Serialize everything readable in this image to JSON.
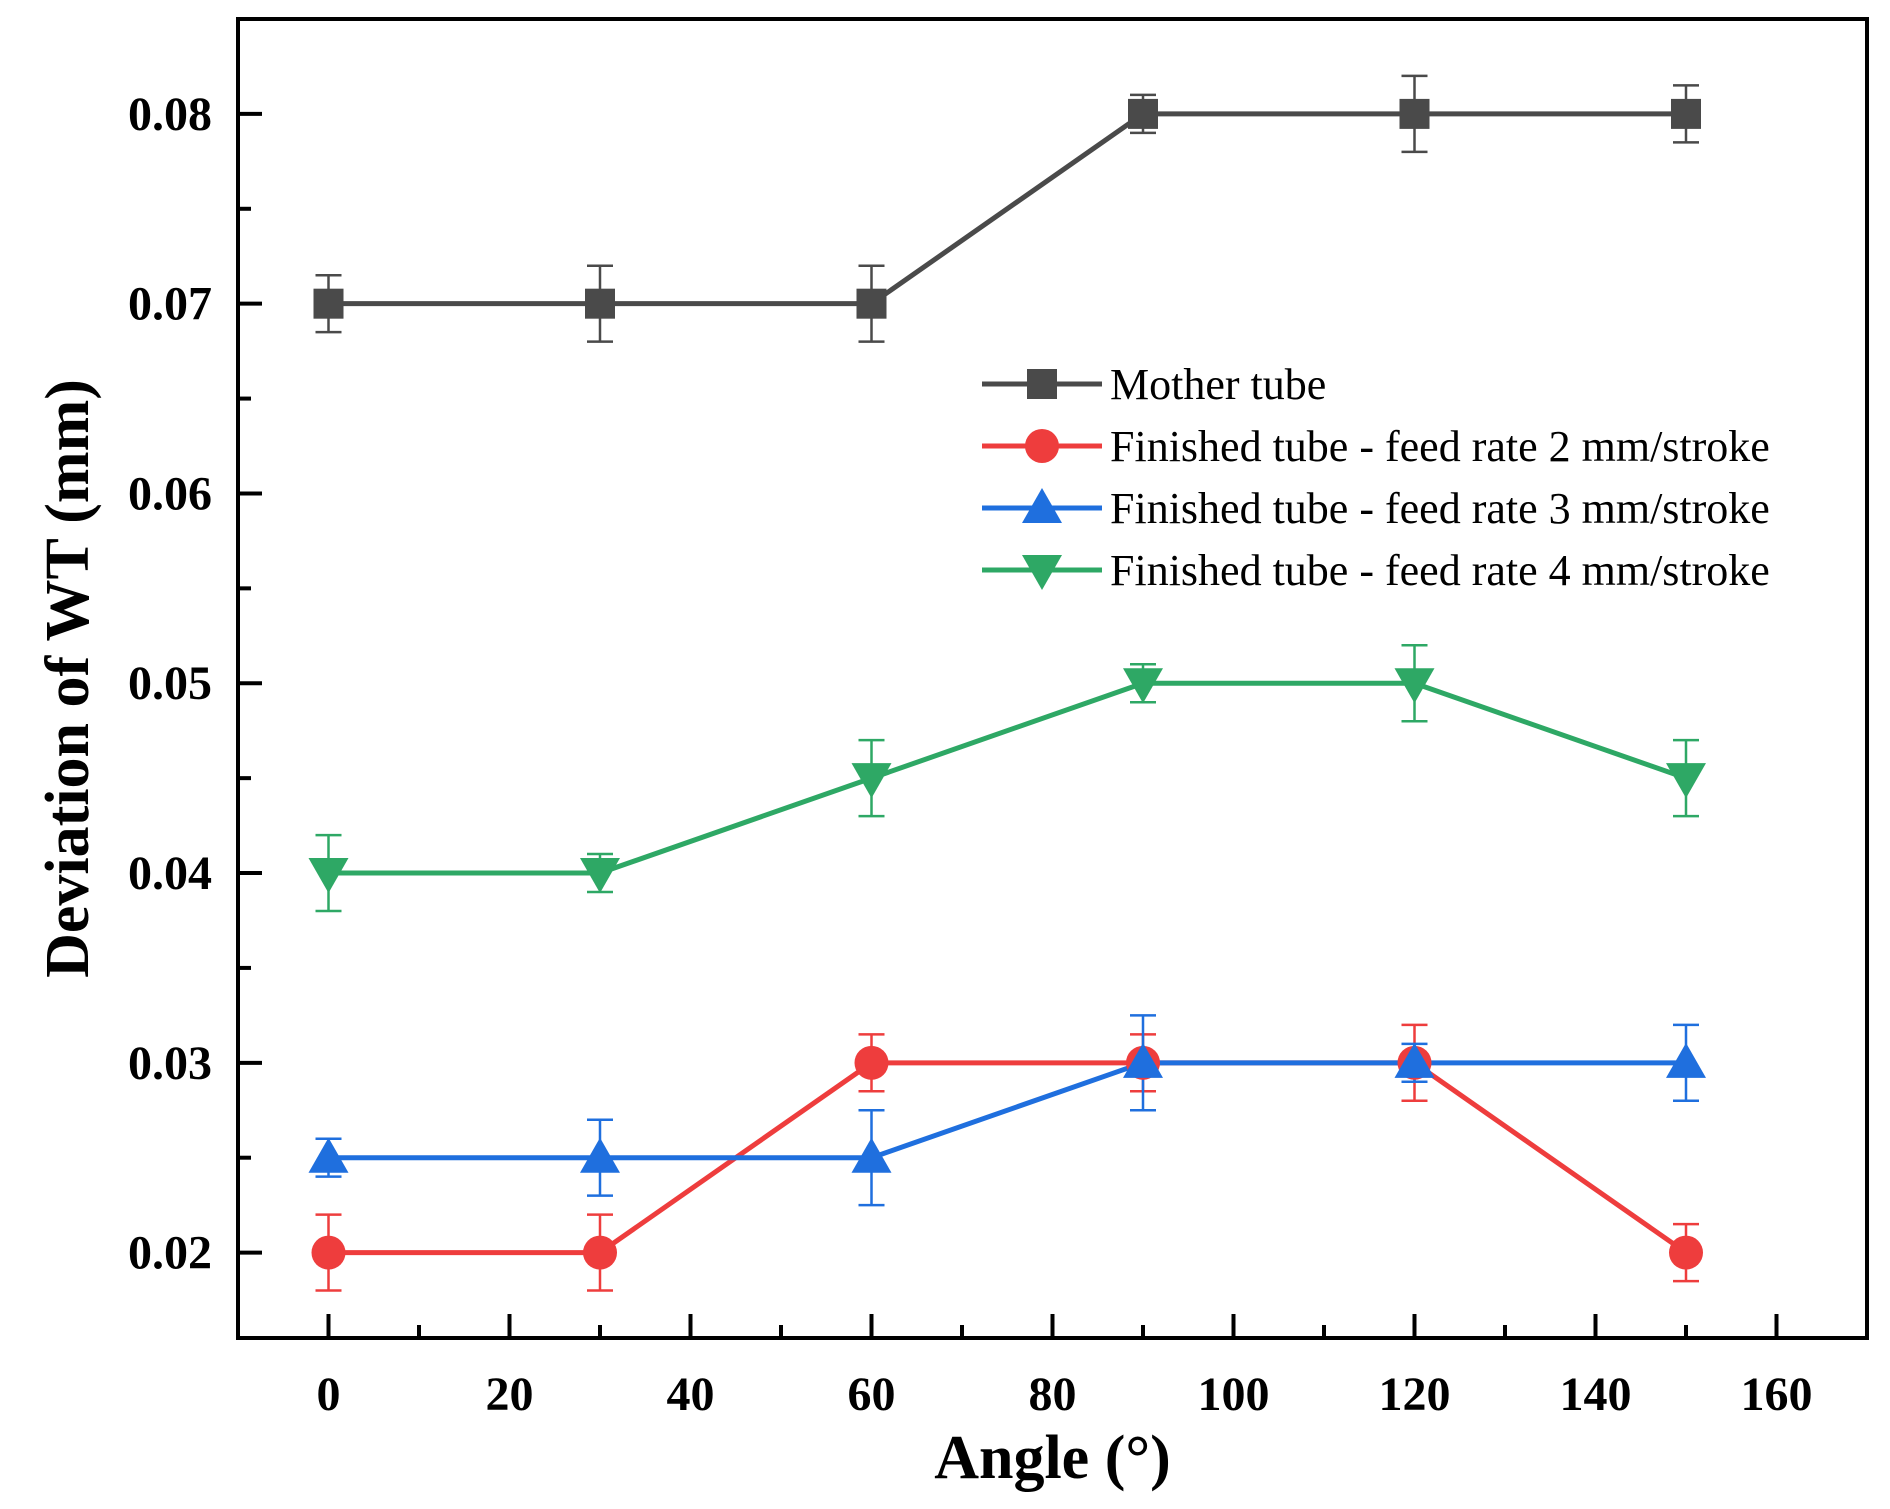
{
  "chart_data": {
    "type": "line",
    "title": "",
    "xlabel": "Angle (°)",
    "ylabel": "Deviation of WT (mm)",
    "xlim": [
      -10,
      170
    ],
    "ylim": [
      0.0155,
      0.085
    ],
    "x_ticks": [
      0,
      20,
      40,
      60,
      80,
      100,
      120,
      140,
      160
    ],
    "x_tick_labels": [
      "0",
      "20",
      "40",
      "60",
      "80",
      "100",
      "120",
      "140",
      "160"
    ],
    "y_ticks": [
      0.02,
      0.03,
      0.04,
      0.05,
      0.06,
      0.07,
      0.08
    ],
    "y_tick_labels": [
      "0.02",
      "0.03",
      "0.04",
      "0.05",
      "0.06",
      "0.07",
      "0.08"
    ],
    "grid": false,
    "legend_position": "upper-right",
    "x": [
      0,
      30,
      60,
      90,
      120,
      150
    ],
    "series": [
      {
        "name": "Mother tube",
        "color": "#4a4a4a",
        "marker": "square",
        "values": [
          0.07,
          0.07,
          0.07,
          0.08,
          0.08,
          0.08
        ],
        "errors": [
          0.0015,
          0.002,
          0.002,
          0.001,
          0.002,
          0.0015
        ]
      },
      {
        "name": "Finished tube - feed rate 2 mm/stroke",
        "color": "#ee3d3d",
        "marker": "circle",
        "values": [
          0.02,
          0.02,
          0.03,
          0.03,
          0.03,
          0.02
        ],
        "errors": [
          0.002,
          0.002,
          0.0015,
          0.0015,
          0.002,
          0.0015
        ]
      },
      {
        "name": "Finished tube - feed rate 3 mm/stroke",
        "color": "#1f6fde",
        "marker": "triangle-up",
        "values": [
          0.025,
          0.025,
          0.025,
          0.03,
          0.03,
          0.03
        ],
        "errors": [
          0.001,
          0.002,
          0.0025,
          0.0025,
          0.001,
          0.002
        ]
      },
      {
        "name": "Finished tube - feed rate 4 mm/stroke",
        "color": "#2ea865",
        "marker": "triangle-down",
        "values": [
          0.04,
          0.04,
          0.045,
          0.05,
          0.05,
          0.045
        ],
        "errors": [
          0.002,
          0.001,
          0.002,
          0.001,
          0.002,
          0.002
        ]
      }
    ]
  }
}
